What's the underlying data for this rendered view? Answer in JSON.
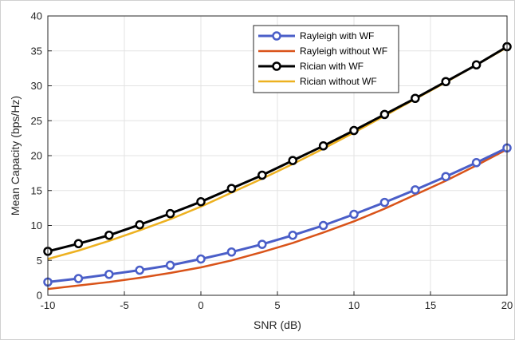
{
  "chart_data": {
    "type": "line",
    "xlabel": "SNR (dB)",
    "ylabel": "Mean Capacity (bps/Hz)",
    "xlim": [
      -10,
      20
    ],
    "ylim": [
      0,
      40
    ],
    "xticks": [
      -10,
      -5,
      0,
      5,
      10,
      15,
      20
    ],
    "yticks": [
      0,
      5,
      10,
      15,
      20,
      25,
      30,
      35,
      40
    ],
    "grid": true,
    "legend_position": "top-right",
    "x": [
      -10,
      -8,
      -6,
      -4,
      -2,
      0,
      2,
      4,
      6,
      8,
      10,
      12,
      14,
      16,
      18,
      20
    ],
    "series": [
      {
        "name": "Rayleigh with WF",
        "color": "#4a5ec8",
        "marker": "circle",
        "values": [
          1.9,
          2.4,
          3.0,
          3.6,
          4.3,
          5.2,
          6.2,
          7.3,
          8.6,
          10.0,
          11.6,
          13.3,
          15.1,
          17.0,
          19.0,
          21.1
        ]
      },
      {
        "name": "Rayleigh without WF",
        "color": "#d95319",
        "marker": "none",
        "values": [
          0.9,
          1.4,
          1.9,
          2.5,
          3.2,
          4.0,
          5.0,
          6.2,
          7.5,
          9.0,
          10.6,
          12.4,
          14.4,
          16.4,
          18.6,
          20.9
        ]
      },
      {
        "name": "Rician with WF",
        "color": "#000000",
        "marker": "circle",
        "values": [
          6.3,
          7.4,
          8.6,
          10.1,
          11.7,
          13.4,
          15.3,
          17.2,
          19.3,
          21.4,
          23.6,
          25.9,
          28.2,
          30.6,
          33.0,
          35.6
        ]
      },
      {
        "name": "Rician without WF",
        "color": "#edb120",
        "marker": "none",
        "values": [
          5.2,
          6.4,
          7.8,
          9.3,
          10.9,
          12.7,
          14.7,
          16.7,
          18.8,
          21.0,
          23.3,
          25.7,
          28.1,
          30.5,
          33.0,
          35.5
        ]
      }
    ]
  }
}
